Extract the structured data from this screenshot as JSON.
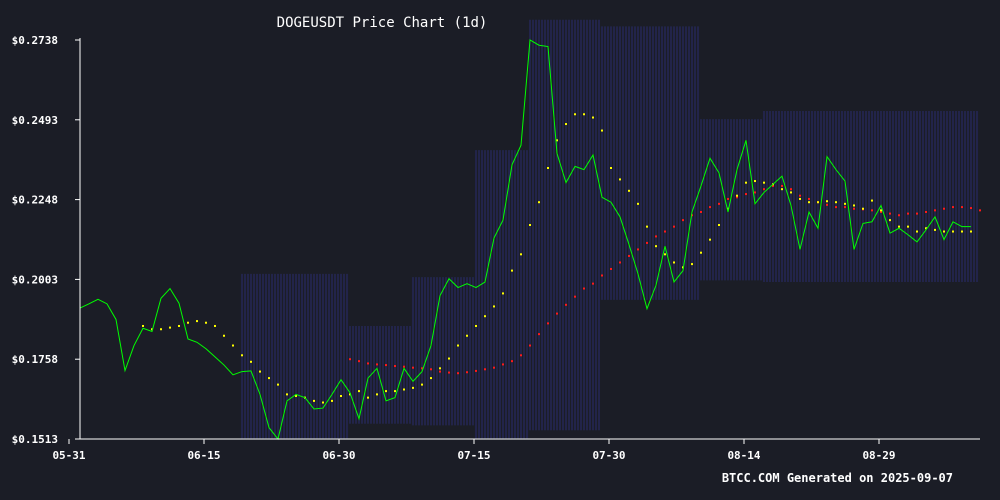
{
  "chart_data": {
    "type": "line",
    "title": "DOGEUSDT Price Chart (1d)",
    "footer": "BTCC.COM Generated on 2025-09-07",
    "xlabel": "",
    "ylabel": "",
    "y_tick_labels": [
      "$0.1513",
      "$0.1758",
      "$0.2003",
      "$0.2248",
      "$0.2493",
      "$0.2738"
    ],
    "y_ticks": [
      0.1513,
      0.1758,
      0.2003,
      0.2248,
      0.2493,
      0.2738
    ],
    "ylim": [
      0.1513,
      0.2738
    ],
    "x_tick_labels": [
      "05-31",
      "06-15",
      "06-30",
      "07-15",
      "07-30",
      "08-14",
      "08-29"
    ],
    "x_tick_days": [
      0,
      15,
      30,
      45,
      60,
      75,
      90
    ],
    "xlim": [
      0,
      100
    ],
    "grid": false,
    "colors": {
      "background": "#1b1d26",
      "price": "#00ff00",
      "ma_short": "#ffff00",
      "ma_long": "#ff1a1a",
      "bands": "#2a2f7a",
      "axis": "#ffffff"
    },
    "series": [
      {
        "key": "price",
        "start_day": 0,
        "values": [
          0.1915,
          0.1928,
          0.1942,
          0.1928,
          0.188,
          0.1723,
          0.18,
          0.1853,
          0.1843,
          0.1945,
          0.1975,
          0.193,
          0.182,
          0.181,
          0.179,
          0.1765,
          0.174,
          0.171,
          0.172,
          0.1722,
          0.165,
          0.1548,
          0.1513,
          0.163,
          0.165,
          0.164,
          0.1605,
          0.1608,
          0.165,
          0.1695,
          0.1655,
          0.1575,
          0.17,
          0.173,
          0.163,
          0.164,
          0.173,
          0.169,
          0.172,
          0.18,
          0.1953,
          0.2005,
          0.1978,
          0.199,
          0.1978,
          0.1995,
          0.213,
          0.2185,
          0.2355,
          0.2415,
          0.2738,
          0.2722,
          0.2718,
          0.239,
          0.23,
          0.235,
          0.234,
          0.2385,
          0.2255,
          0.224,
          0.2195,
          0.211,
          0.202,
          0.1913,
          0.1985,
          0.2105,
          0.1995,
          0.203,
          0.221,
          0.229,
          0.2375,
          0.233,
          0.221,
          0.234,
          0.243,
          0.2235,
          0.227,
          0.2295,
          0.232,
          0.223,
          0.2095,
          0.221,
          0.216,
          0.238,
          0.234,
          0.2305,
          0.2095,
          0.2175,
          0.218,
          0.223,
          0.2145,
          0.216,
          0.214,
          0.2118,
          0.2155,
          0.2195,
          0.2125,
          0.218,
          0.2165,
          0.2165
        ]
      },
      {
        "key": "ma_short",
        "start_day": 7,
        "values": [
          0.186,
          0.185,
          0.185,
          0.1855,
          0.186,
          0.187,
          0.1875,
          0.187,
          0.186,
          0.183,
          0.18,
          0.177,
          0.175,
          0.172,
          0.17,
          0.168,
          0.165,
          0.1645,
          0.164,
          0.163,
          0.1625,
          0.163,
          0.1645,
          0.165,
          0.166,
          0.164,
          0.165,
          0.166,
          0.166,
          0.1665,
          0.167,
          0.168,
          0.17,
          0.173,
          0.176,
          0.18,
          0.183,
          0.186,
          0.189,
          0.192,
          0.196,
          0.203,
          0.208,
          0.217,
          0.224,
          0.2345,
          0.243,
          0.248,
          0.251,
          0.251,
          0.25,
          0.246,
          0.2345,
          0.231,
          0.2275,
          0.2235,
          0.2165,
          0.2105,
          0.208,
          0.2055,
          0.204,
          0.205,
          0.2085,
          0.2125,
          0.217,
          0.222,
          0.226,
          0.23,
          0.2305,
          0.23,
          0.2295,
          0.228,
          0.227,
          0.225,
          0.224,
          0.224,
          0.2243,
          0.224,
          0.2235,
          0.223,
          0.222,
          0.2245,
          0.2215,
          0.2185,
          0.2165,
          0.2165,
          0.215,
          0.216,
          0.2155,
          0.215,
          0.215,
          0.215,
          0.215
        ]
      },
      {
        "key": "ma_long",
        "start_day": 30,
        "values": [
          0.1758,
          0.1752,
          0.1745,
          0.1742,
          0.174,
          0.1737,
          0.1735,
          0.1732,
          0.173,
          0.1727,
          0.172,
          0.1717,
          0.1715,
          0.1718,
          0.1722,
          0.1727,
          0.1732,
          0.1742,
          0.1752,
          0.177,
          0.18,
          0.1835,
          0.1868,
          0.1898,
          0.1925,
          0.195,
          0.1975,
          0.199,
          0.2015,
          0.2035,
          0.2055,
          0.2075,
          0.2095,
          0.2115,
          0.2135,
          0.215,
          0.2165,
          0.2185,
          0.22,
          0.221,
          0.2225,
          0.2235,
          0.225,
          0.2255,
          0.2265,
          0.227,
          0.228,
          0.229,
          0.229,
          0.228,
          0.226,
          0.225,
          0.224,
          0.2232,
          0.2225,
          0.2225,
          0.222,
          0.2218,
          0.2215,
          0.221,
          0.2205,
          0.22,
          0.2205,
          0.2205,
          0.221,
          0.2215,
          0.222,
          0.2225,
          0.2225,
          0.2222,
          0.2215
        ]
      }
    ],
    "bands": [
      {
        "start_day": 18,
        "end_day": 30,
        "upper": 0.202,
        "lower": 0.1515
      },
      {
        "start_day": 30,
        "end_day": 37,
        "upper": 0.186,
        "lower": 0.156
      },
      {
        "start_day": 37,
        "end_day": 44,
        "upper": 0.201,
        "lower": 0.1555
      },
      {
        "start_day": 44,
        "end_day": 50,
        "upper": 0.24,
        "lower": 0.1515
      },
      {
        "start_day": 50,
        "end_day": 58,
        "upper": 0.28,
        "lower": 0.154
      },
      {
        "start_day": 58,
        "end_day": 69,
        "upper": 0.278,
        "lower": 0.194
      },
      {
        "start_day": 69,
        "end_day": 76,
        "upper": 0.2495,
        "lower": 0.2
      },
      {
        "start_day": 76,
        "end_day": 100,
        "upper": 0.252,
        "lower": 0.1995
      }
    ]
  }
}
